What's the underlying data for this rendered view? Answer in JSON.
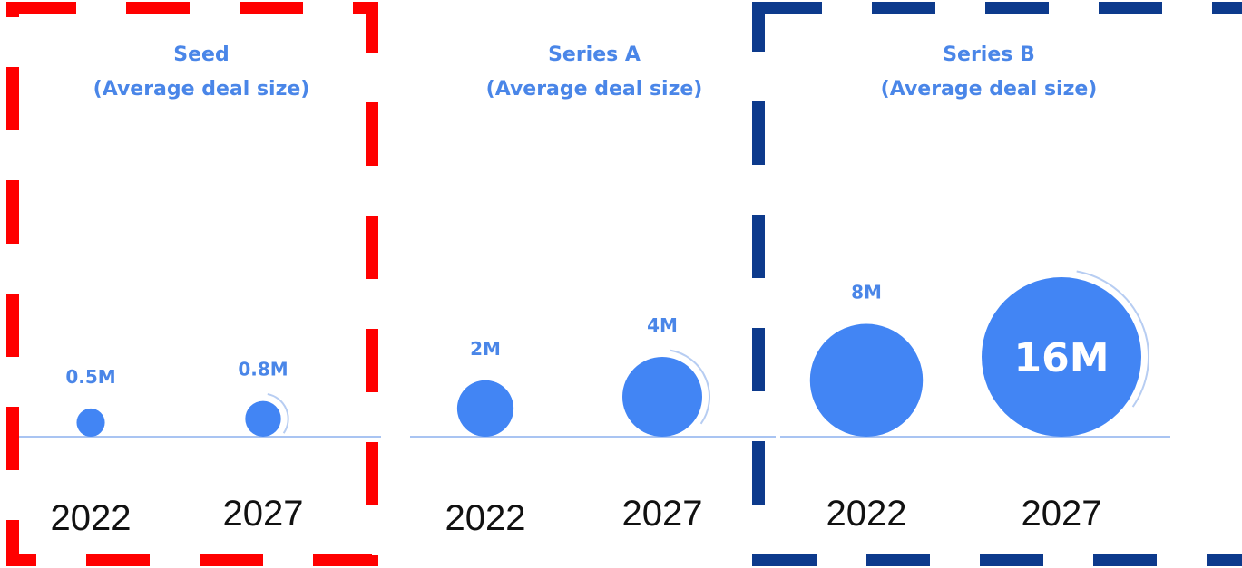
{
  "colors": {
    "bubble": "#4285f4",
    "label": "#4a86e8",
    "baseline": "#a9c4f2",
    "arc": "#b7cdf2",
    "highlight_seed": "#ff0000",
    "highlight_series_b": "#0d3a8c",
    "year_text": "#111111"
  },
  "chart_data": [
    {
      "type": "bubble",
      "title": "Seed",
      "subtitle": "(Average deal size)",
      "categories": [
        "2022",
        "2027"
      ],
      "values": [
        0.5,
        0.8
      ],
      "value_labels": [
        "0.5M",
        "0.8M"
      ],
      "unit": "M",
      "highlight": "red-dashed-border"
    },
    {
      "type": "bubble",
      "title": "Series A",
      "subtitle": "(Average deal size)",
      "categories": [
        "2022",
        "2027"
      ],
      "values": [
        2,
        4
      ],
      "value_labels": [
        "2M",
        "4M"
      ],
      "unit": "M",
      "highlight": "none"
    },
    {
      "type": "bubble",
      "title": "Series B",
      "subtitle": "(Average deal size)",
      "categories": [
        "2022",
        "2027"
      ],
      "values": [
        8,
        16
      ],
      "value_labels": [
        "8M",
        "16M"
      ],
      "unit": "M",
      "highlight": "blue-dashed-border"
    }
  ]
}
